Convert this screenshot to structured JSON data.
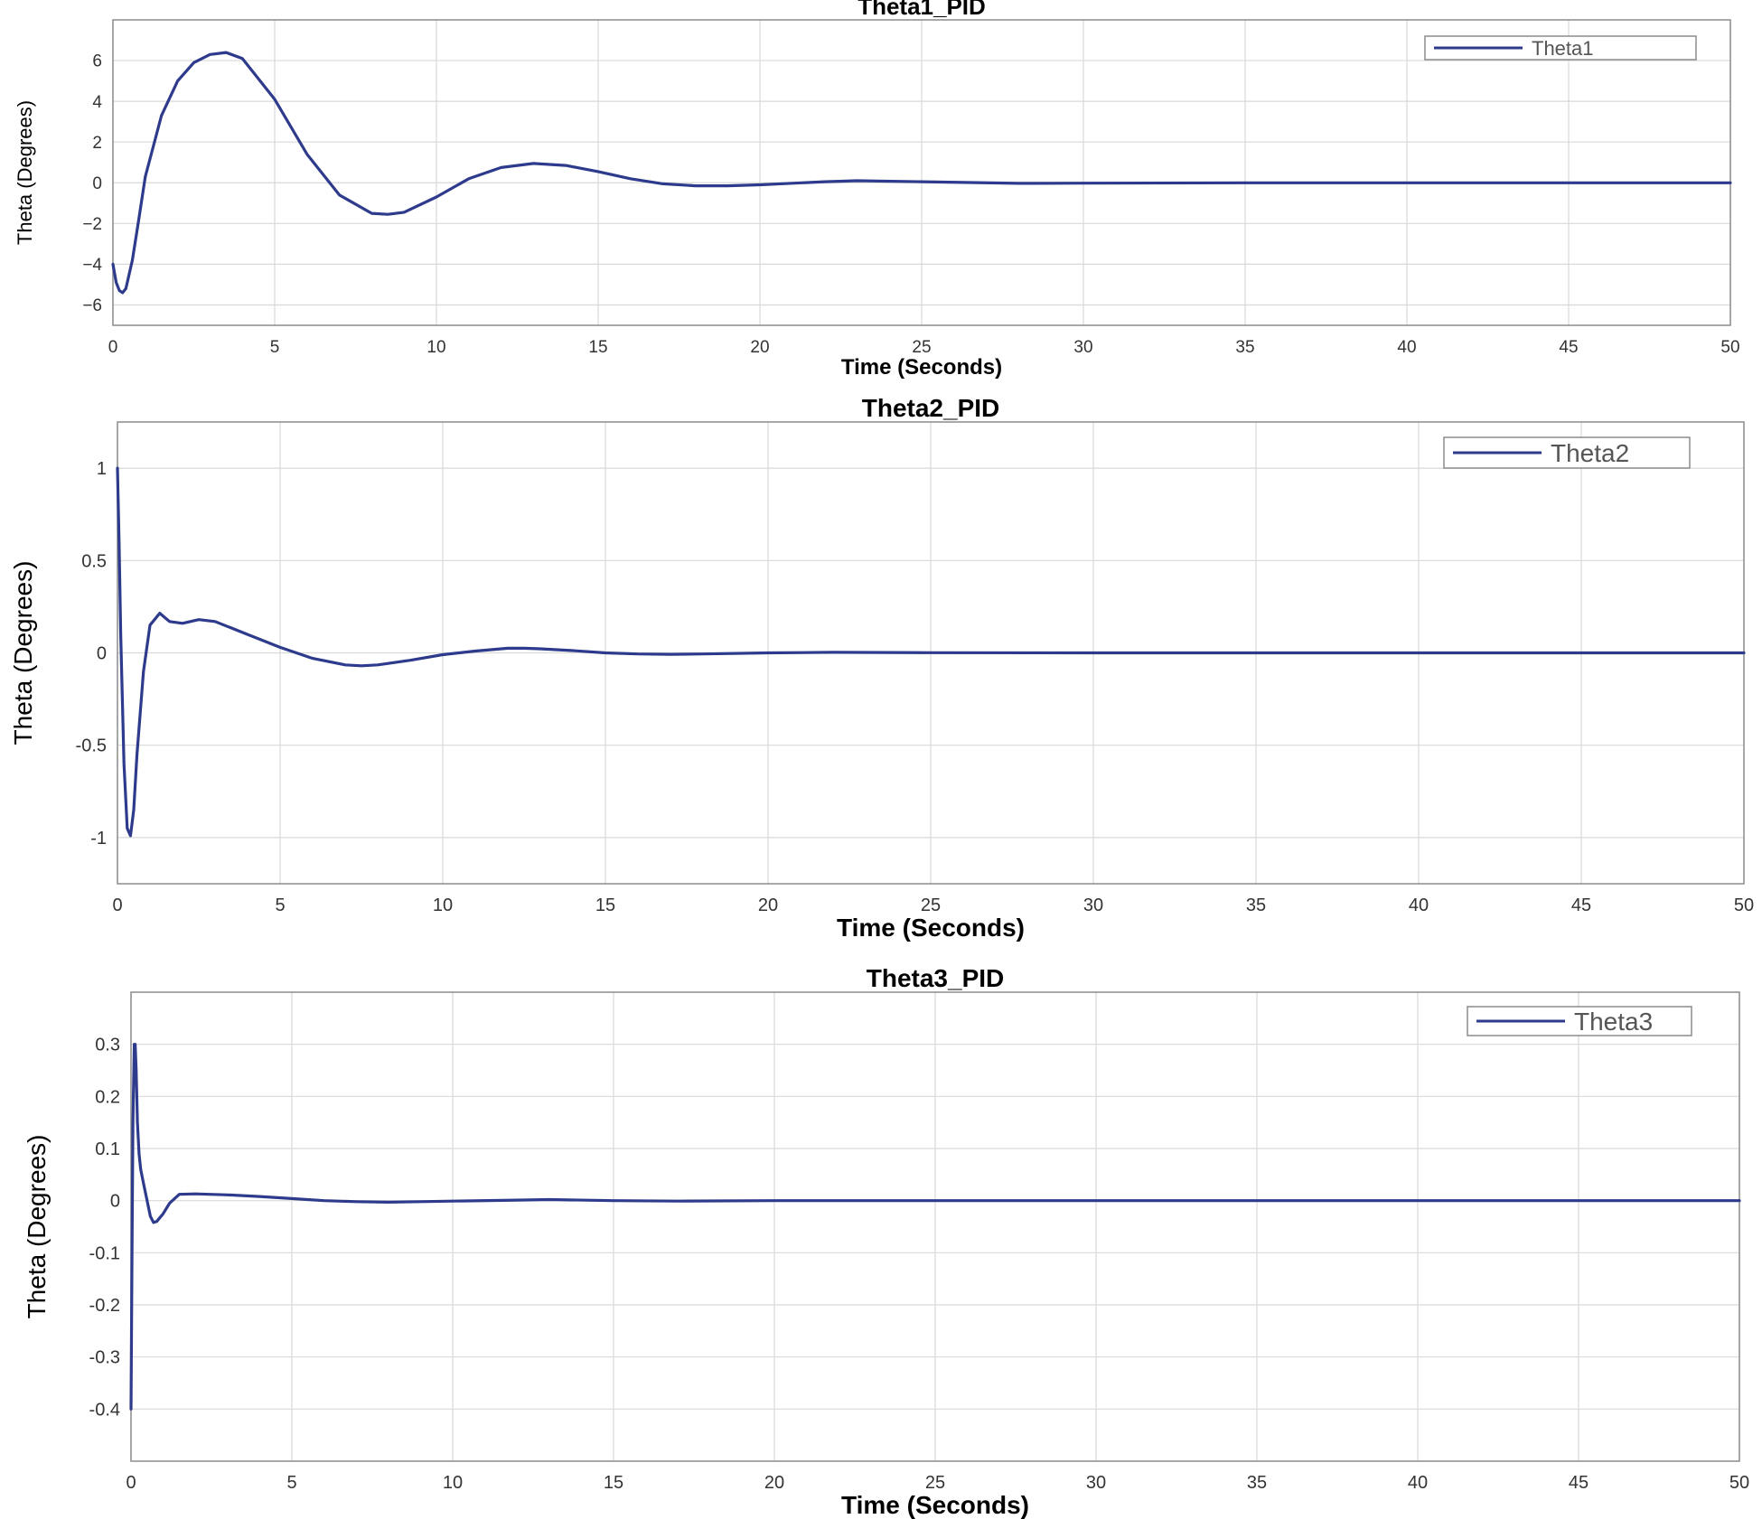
{
  "colors": {
    "line": "#2e3a8c",
    "grid": "#d9d9d9",
    "axes": "#8c8c8c"
  },
  "chart_data": [
    {
      "type": "line",
      "title": "Theta1_PID",
      "xlabel": "Time (Seconds)",
      "ylabel": "Theta (Degrees)",
      "xlim": [
        0,
        50
      ],
      "ylim": [
        -7,
        8
      ],
      "xticks": [
        0,
        5,
        10,
        15,
        20,
        25,
        30,
        35,
        40,
        45,
        50
      ],
      "yticks": [
        -6,
        -4,
        -2,
        0,
        2,
        4,
        6
      ],
      "ytick_labels": [
        "−6",
        "−4",
        "−2",
        "0",
        "2",
        "4",
        "6"
      ],
      "grid": true,
      "legend_position": "top-right",
      "series": [
        {
          "name": "Theta1",
          "x": [
            0,
            0.1,
            0.2,
            0.3,
            0.4,
            0.6,
            0.8,
            1.0,
            1.5,
            2.0,
            2.5,
            3.0,
            3.5,
            4.0,
            5.0,
            6.0,
            7.0,
            8.0,
            8.5,
            9.0,
            10.0,
            11.0,
            12.0,
            13.0,
            14.0,
            15.0,
            16.0,
            17.0,
            18.0,
            19.0,
            20.0,
            22.0,
            23.0,
            25.0,
            28.0,
            30.0,
            35.0,
            40.0,
            45.0,
            50.0
          ],
          "y": [
            -4.0,
            -4.9,
            -5.3,
            -5.4,
            -5.2,
            -3.8,
            -1.8,
            0.3,
            3.3,
            5.0,
            5.9,
            6.3,
            6.4,
            6.1,
            4.1,
            1.4,
            -0.6,
            -1.5,
            -1.55,
            -1.45,
            -0.7,
            0.2,
            0.75,
            0.95,
            0.85,
            0.55,
            0.2,
            -0.05,
            -0.15,
            -0.15,
            -0.1,
            0.05,
            0.1,
            0.05,
            -0.03,
            -0.02,
            0,
            0,
            0,
            0
          ]
        }
      ]
    },
    {
      "type": "line",
      "title": "Theta2_PID",
      "xlabel": "Time (Seconds)",
      "ylabel": "Theta (Degrees)",
      "xlim": [
        0,
        50
      ],
      "ylim": [
        -1.25,
        1.25
      ],
      "xticks": [
        0,
        5,
        10,
        15,
        20,
        25,
        30,
        35,
        40,
        45,
        50
      ],
      "yticks": [
        -1,
        -0.5,
        0,
        0.5,
        1
      ],
      "ytick_labels": [
        "-1",
        "-0.5",
        "0",
        "0.5",
        "1"
      ],
      "grid": true,
      "legend_position": "top-right",
      "series": [
        {
          "name": "Theta2",
          "x": [
            0,
            0.05,
            0.1,
            0.2,
            0.3,
            0.4,
            0.5,
            0.6,
            0.8,
            1.0,
            1.3,
            1.6,
            2.0,
            2.5,
            3.0,
            4.0,
            5.0,
            6.0,
            7.0,
            7.5,
            8.0,
            9.0,
            10.0,
            11.0,
            12.0,
            12.5,
            13.0,
            14.0,
            15.0,
            16.0,
            17.0,
            18.0,
            20.0,
            22.0,
            25.0,
            30.0,
            35.0,
            40.0,
            45.0,
            50.0
          ],
          "y": [
            1.0,
            0.6,
            0.1,
            -0.6,
            -0.95,
            -0.99,
            -0.85,
            -0.55,
            -0.1,
            0.15,
            0.215,
            0.17,
            0.16,
            0.18,
            0.17,
            0.1,
            0.03,
            -0.03,
            -0.065,
            -0.07,
            -0.065,
            -0.04,
            -0.01,
            0.01,
            0.025,
            0.025,
            0.022,
            0.012,
            0.0,
            -0.006,
            -0.008,
            -0.006,
            0.0,
            0.003,
            0.001,
            0,
            0,
            0,
            0,
            0
          ]
        }
      ]
    },
    {
      "type": "line",
      "title": "Theta3_PID",
      "xlabel": "Time (Seconds)",
      "ylabel": "Theta (Degrees)",
      "xlim": [
        0,
        50
      ],
      "ylim": [
        -0.5,
        0.4
      ],
      "xticks": [
        0,
        5,
        10,
        15,
        20,
        25,
        30,
        35,
        40,
        45,
        50
      ],
      "yticks": [
        -0.4,
        -0.3,
        -0.2,
        -0.1,
        0,
        0.1,
        0.2,
        0.3
      ],
      "ytick_labels": [
        "-0.4",
        "-0.3",
        "-0.2",
        "-0.1",
        "0",
        "0.1",
        "0.2",
        "0.3"
      ],
      "grid": true,
      "legend_position": "top-right",
      "series": [
        {
          "name": "Theta3",
          "x": [
            0,
            0.03,
            0.06,
            0.1,
            0.13,
            0.16,
            0.2,
            0.25,
            0.3,
            0.4,
            0.5,
            0.6,
            0.7,
            0.8,
            1.0,
            1.2,
            1.5,
            2.0,
            3.0,
            4.0,
            5.0,
            6.0,
            7.0,
            8.0,
            9.0,
            10.0,
            12.0,
            13.0,
            15.0,
            17.0,
            20.0,
            25.0,
            30.0,
            40.0,
            50.0
          ],
          "y": [
            -0.4,
            -0.1,
            0.15,
            0.3,
            0.3,
            0.25,
            0.15,
            0.09,
            0.06,
            0.03,
            0.0,
            -0.03,
            -0.042,
            -0.04,
            -0.025,
            -0.005,
            0.012,
            0.013,
            0.011,
            0.008,
            0.004,
            0.0,
            -0.002,
            -0.003,
            -0.002,
            -0.001,
            0.001,
            0.002,
            0.0,
            -0.001,
            0.0,
            0.0,
            0.0,
            0.0,
            0.0
          ]
        }
      ]
    }
  ]
}
